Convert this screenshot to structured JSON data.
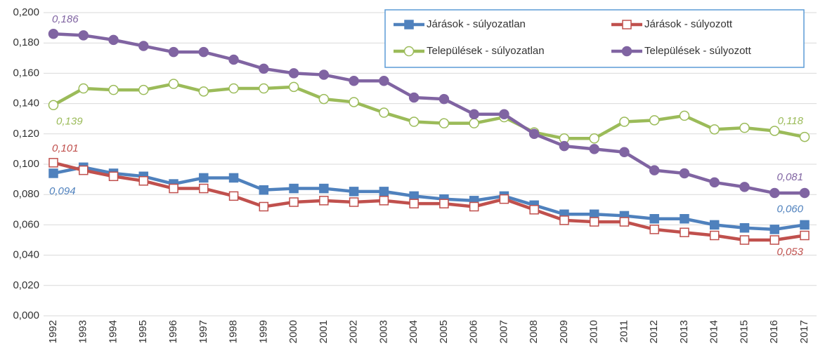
{
  "chart_data": {
    "type": "line",
    "categories": [
      "1992",
      "1993",
      "1994",
      "1995",
      "1996",
      "1997",
      "1998",
      "1999",
      "2000",
      "2001",
      "2002",
      "2003",
      "2004",
      "2005",
      "2006",
      "2007",
      "2008",
      "2009",
      "2010",
      "2011",
      "2012",
      "2013",
      "2014",
      "2015",
      "2016",
      "2017"
    ],
    "series": [
      {
        "name": "Járások - súlyozatlan",
        "color": "#4f81bd",
        "marker": "square",
        "marker_fill": "filled",
        "values": [
          0.094,
          0.098,
          0.094,
          0.092,
          0.087,
          0.091,
          0.091,
          0.083,
          0.084,
          0.084,
          0.082,
          0.082,
          0.079,
          0.077,
          0.076,
          0.079,
          0.073,
          0.067,
          0.067,
          0.066,
          0.064,
          0.064,
          0.06,
          0.058,
          0.057,
          0.06
        ],
        "value_labels": [
          "0,094",
          null,
          null,
          null,
          null,
          null,
          null,
          null,
          null,
          null,
          null,
          null,
          null,
          null,
          null,
          null,
          null,
          null,
          null,
          null,
          null,
          null,
          null,
          null,
          null,
          "0,060"
        ]
      },
      {
        "name": "Járások - súlyozott",
        "color": "#c0504d",
        "marker": "square",
        "marker_fill": "hollow",
        "values": [
          0.101,
          0.096,
          0.092,
          0.089,
          0.084,
          0.084,
          0.079,
          0.072,
          0.075,
          0.076,
          0.075,
          0.076,
          0.074,
          0.074,
          0.072,
          0.077,
          0.07,
          0.063,
          0.062,
          0.062,
          0.057,
          0.055,
          0.053,
          0.05,
          0.05,
          0.053
        ],
        "value_labels": [
          "0,101",
          null,
          null,
          null,
          null,
          null,
          null,
          null,
          null,
          null,
          null,
          null,
          null,
          null,
          null,
          null,
          null,
          null,
          null,
          null,
          null,
          null,
          null,
          null,
          null,
          "0,053"
        ]
      },
      {
        "name": "Települések - súlyozatlan",
        "color": "#9bbb59",
        "marker": "circle",
        "marker_fill": "hollow",
        "values": [
          0.139,
          0.15,
          0.149,
          0.149,
          0.153,
          0.148,
          0.15,
          0.15,
          0.151,
          0.143,
          0.141,
          0.134,
          0.128,
          0.127,
          0.127,
          0.131,
          0.121,
          0.117,
          0.117,
          0.128,
          0.129,
          0.132,
          0.123,
          0.124,
          0.122,
          0.118
        ],
        "value_labels": [
          "0,139",
          null,
          null,
          null,
          null,
          null,
          null,
          null,
          null,
          null,
          null,
          null,
          null,
          null,
          null,
          null,
          null,
          null,
          null,
          null,
          null,
          null,
          null,
          null,
          null,
          "0,118"
        ]
      },
      {
        "name": "Települések - súlyozott",
        "color": "#8064a2",
        "marker": "circle",
        "marker_fill": "filled",
        "values": [
          0.186,
          0.185,
          0.182,
          0.178,
          0.174,
          0.174,
          0.169,
          0.163,
          0.16,
          0.159,
          0.155,
          0.155,
          0.144,
          0.143,
          0.133,
          0.133,
          0.12,
          0.112,
          0.11,
          0.108,
          0.096,
          0.094,
          0.088,
          0.085,
          0.081,
          0.081
        ],
        "value_labels": [
          "0,186",
          null,
          null,
          null,
          null,
          null,
          null,
          null,
          null,
          null,
          null,
          null,
          null,
          null,
          null,
          null,
          null,
          null,
          null,
          null,
          null,
          null,
          null,
          null,
          null,
          "0,081"
        ]
      }
    ],
    "ylim": [
      0,
      0.2
    ],
    "yticks": [
      {
        "value": 0,
        "label": "0,000"
      },
      {
        "value": 0.02,
        "label": "0,020"
      },
      {
        "value": 0.04,
        "label": "0,040"
      },
      {
        "value": 0.06,
        "label": "0,060"
      },
      {
        "value": 0.08,
        "label": "0,080"
      },
      {
        "value": 0.1,
        "label": "0,100"
      },
      {
        "value": 0.12,
        "label": "0,120"
      },
      {
        "value": 0.14,
        "label": "0,140"
      },
      {
        "value": 0.16,
        "label": "0,160"
      },
      {
        "value": 0.18,
        "label": "0,180"
      },
      {
        "value": 0.2,
        "label": "0,200"
      }
    ],
    "grid": true,
    "legend": "upper right"
  }
}
